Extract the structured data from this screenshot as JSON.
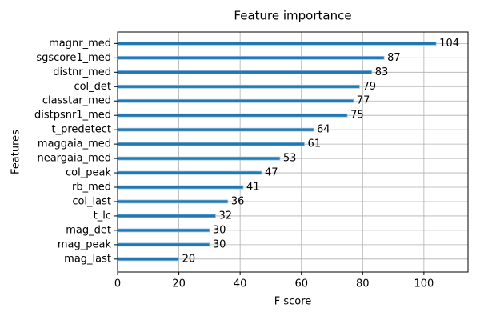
{
  "chart_data": {
    "type": "barh",
    "title": "Feature importance",
    "x_label": "F score",
    "y_label": "Features",
    "categories": [
      "magnr_med",
      "sgscore1_med",
      "distnr_med",
      "col_det",
      "classtar_med",
      "distpsnr1_med",
      "t_predetect",
      "maggaia_med",
      "neargaia_med",
      "col_peak",
      "rb_med",
      "col_last",
      "t_lc",
      "mag_det",
      "mag_peak",
      "mag_last"
    ],
    "values": [
      104,
      87,
      83,
      79,
      77,
      75,
      64,
      61,
      53,
      47,
      41,
      36,
      32,
      30,
      30,
      20
    ],
    "color": "#1f77b4",
    "xlim": [
      0,
      114.4
    ],
    "xticks": [
      0,
      20,
      40,
      60,
      80,
      100
    ],
    "grid": true
  }
}
